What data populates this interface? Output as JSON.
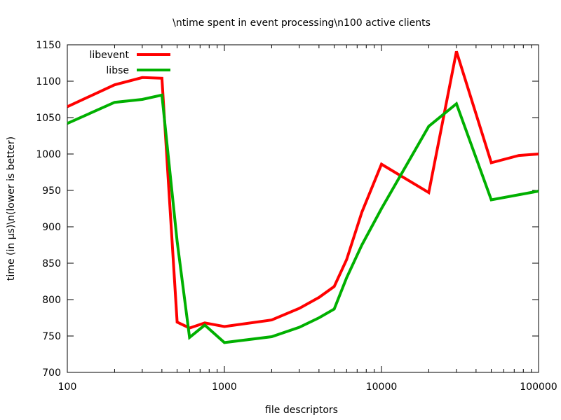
{
  "chart_data": {
    "type": "line",
    "title": "\\ntime spent in event processing\\n100 active clients",
    "xlabel": "file descriptors",
    "ylabel": "time (in µs)\\n(lower is better)",
    "x_scale": "log",
    "xlim": [
      100,
      100000
    ],
    "ylim": [
      700,
      1150
    ],
    "x_ticks": [
      "100",
      "1000",
      "10000",
      "100000"
    ],
    "y_ticks": [
      "700",
      "750",
      "800",
      "850",
      "900",
      "950",
      "1000",
      "1050",
      "1100",
      "1150"
    ],
    "grid": false,
    "legend_position": "top-left",
    "series": [
      {
        "name": "libevent",
        "color": "#ff0000",
        "points": [
          [
            100,
            1065
          ],
          [
            200,
            1095
          ],
          [
            300,
            1105
          ],
          [
            400,
            1104
          ],
          [
            500,
            769
          ],
          [
            600,
            761
          ],
          [
            750,
            768
          ],
          [
            1000,
            763
          ],
          [
            2000,
            772
          ],
          [
            3000,
            788
          ],
          [
            4000,
            803
          ],
          [
            5000,
            818
          ],
          [
            6000,
            855
          ],
          [
            7500,
            920
          ],
          [
            10000,
            986
          ],
          [
            20000,
            947
          ],
          [
            30000,
            1141
          ],
          [
            50000,
            988
          ],
          [
            75000,
            998
          ],
          [
            100000,
            1000
          ]
        ]
      },
      {
        "name": "libse",
        "color": "#00b000",
        "points": [
          [
            100,
            1042
          ],
          [
            200,
            1071
          ],
          [
            300,
            1075
          ],
          [
            400,
            1081
          ],
          [
            500,
            880
          ],
          [
            600,
            748
          ],
          [
            750,
            765
          ],
          [
            1000,
            741
          ],
          [
            2000,
            749
          ],
          [
            3000,
            762
          ],
          [
            4000,
            775
          ],
          [
            5000,
            787
          ],
          [
            6000,
            830
          ],
          [
            7500,
            875
          ],
          [
            10000,
            925
          ],
          [
            20000,
            1038
          ],
          [
            30000,
            1069
          ],
          [
            50000,
            937
          ],
          [
            100000,
            949
          ]
        ]
      }
    ]
  }
}
